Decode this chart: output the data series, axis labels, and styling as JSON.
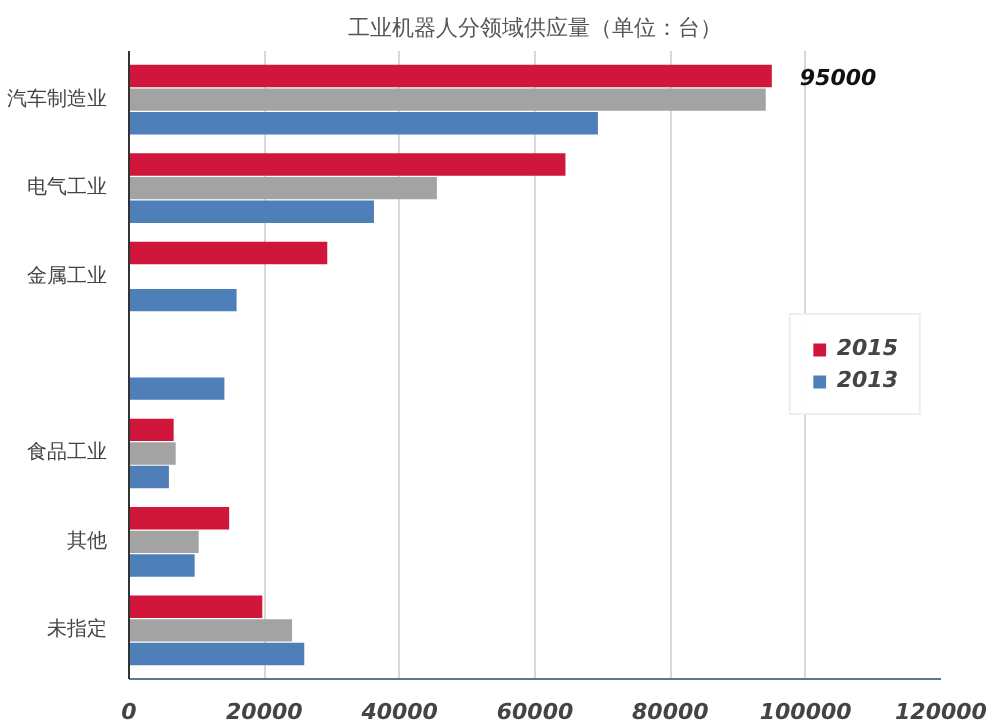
{
  "chart_data": {
    "type": "bar",
    "orientation": "horizontal",
    "title": "工业机器人分领域供应量（单位：台）",
    "categories": [
      "汽车制造业",
      "电气工业",
      "金属工业",
      null,
      "食品工业",
      "其他",
      "未指定"
    ],
    "series": [
      {
        "name": "2015",
        "color": "#d0163a",
        "values": [
          95000,
          64500,
          29300,
          null,
          6600,
          14800,
          19700
        ],
        "value_labels": [
          "95000",
          null,
          null,
          null,
          null,
          null,
          null
        ]
      },
      {
        "color": "#a3a3a3",
        "values": [
          94100,
          45500,
          null,
          null,
          6900,
          10300,
          24100
        ]
      },
      {
        "name": "2013",
        "color": "#4f7fb8",
        "values": [
          69300,
          36200,
          15900,
          14100,
          5900,
          9700,
          25900
        ]
      }
    ],
    "xlim": [
      0,
      120000
    ],
    "xticks": [
      0,
      20000,
      40000,
      60000,
      80000,
      100000,
      120000
    ],
    "grid": "x",
    "legend": "right"
  }
}
